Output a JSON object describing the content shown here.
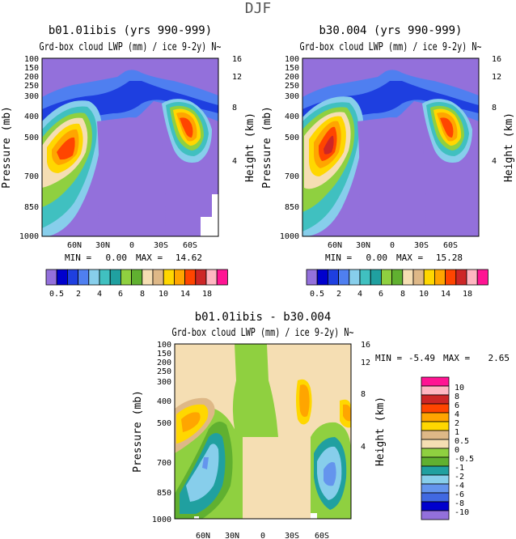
{
  "page": {
    "season": "DJF"
  },
  "chart_data": [
    {
      "type": "heatmap",
      "title": "b01.01ibis (yrs 990-999)",
      "subtitle": "Grd-box cloud LWP (mm) / ice 9-2y) N~",
      "ylabel": "Pressure (mb)",
      "ylabel_right": "Height (km)",
      "x_ticks": [
        "60N",
        "30N",
        "0",
        "30S",
        "60S"
      ],
      "y_ticks": [
        "100",
        "150",
        "200",
        "250",
        "300",
        "400",
        "500",
        "700",
        "850",
        "1000"
      ],
      "y_ticks_right": [
        "16",
        "12",
        "8",
        "4"
      ],
      "min_label": "MIN =",
      "min_value": "0.00",
      "max_label": "MAX =",
      "max_value": "14.62",
      "colorbar_labels": [
        "0.5",
        "2",
        "4",
        "6",
        "8",
        "10",
        "14",
        "18"
      ],
      "colors": [
        "#9370DB",
        "#0000CD",
        "#1E3FE0",
        "#4F7FF0",
        "#87CEEB",
        "#40C0C0",
        "#20A0A0",
        "#8FD040",
        "#60B030",
        "#F5DEB3",
        "#DEB887",
        "#FFD700",
        "#FFA500",
        "#FF4500",
        "#CD2626",
        "#FFB6C1",
        "#FF1493"
      ]
    },
    {
      "type": "heatmap",
      "title": "b30.004 (yrs 990-999)",
      "subtitle": "Grd-box cloud LWP (mm) / ice 9-2y) N~",
      "x_ticks": [
        "60N",
        "30N",
        "0",
        "30S",
        "60S"
      ],
      "y_ticks": [
        "100",
        "150",
        "200",
        "250",
        "300",
        "400",
        "500",
        "700",
        "850",
        "1000"
      ],
      "y_ticks_right": [
        "16",
        "12",
        "8",
        "4"
      ],
      "ylabel": "Pressure (mb)",
      "ylabel_right": "Height (km)",
      "min_label": "MIN =",
      "min_value": "0.00",
      "max_label": "MAX =",
      "max_value": "15.28",
      "colorbar_labels": [
        "0.5",
        "2",
        "4",
        "6",
        "8",
        "10",
        "14",
        "18"
      ]
    },
    {
      "type": "heatmap",
      "title": "b01.01ibis - b30.004",
      "subtitle": "Grd-box cloud LWP (mm) / ice 9-2y) N~",
      "x_ticks": [
        "60N",
        "30N",
        "0",
        "30S",
        "60S"
      ],
      "y_ticks": [
        "100",
        "150",
        "200",
        "250",
        "300",
        "400",
        "500",
        "700",
        "850",
        "1000"
      ],
      "y_ticks_right": [
        "16",
        "12",
        "8",
        "4"
      ],
      "ylabel": "Pressure (mb)",
      "ylabel_right": "Height (km)",
      "min_label": "MIN =",
      "min_value": "-5.49",
      "max_label": "MAX =",
      "max_value": "2.65",
      "colorbar_labels": [
        "10",
        "8",
        "6",
        "4",
        "2",
        "1",
        "0.5",
        "0",
        "-0.5",
        "-1",
        "-2",
        "-4",
        "-6",
        "-8",
        "-10"
      ],
      "colors": [
        "#FF1493",
        "#FFB6C1",
        "#CD2626",
        "#FF4500",
        "#FFA500",
        "#FFD700",
        "#DEB887",
        "#F5DEB3",
        "#8FD040",
        "#60B030",
        "#20A0A0",
        "#87CEEB",
        "#6495ED",
        "#4169E1",
        "#0000CD",
        "#9370DB"
      ]
    }
  ]
}
